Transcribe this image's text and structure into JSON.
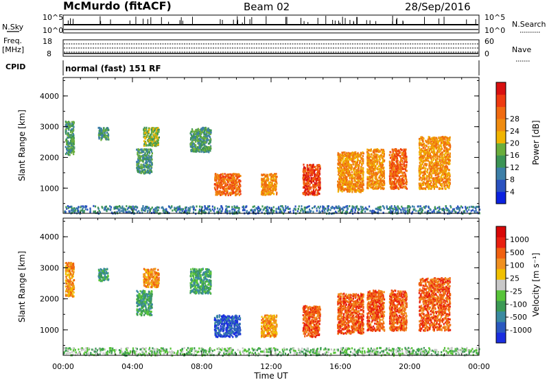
{
  "header": {
    "station": "McMurdo (fitACF)",
    "beam": "Beam 02",
    "date": "28/Sep/2016"
  },
  "params": {
    "nsky_label": "N.Sky",
    "nsky_ticks": [
      "10^5",
      "10^0"
    ],
    "nsearch_label": "N.Search",
    "nsearch_ticks": [
      "10^5",
      "10^0"
    ],
    "freq_label_1": "Freq.",
    "freq_label_2": "[MHz]",
    "freq_ticks": [
      "18",
      "8"
    ],
    "nave_label": "Nave",
    "nave_ticks": [
      "60",
      "0"
    ],
    "cpid_label": "CPID",
    "cpid_value": "normal (fast) 151 RF"
  },
  "chart_data": [
    {
      "type": "heatmap",
      "title": "",
      "ylabel": "Slant Range [km]",
      "xlabel": "",
      "x_ticks": [
        "00:00",
        "04:00",
        "08:00",
        "12:00",
        "16:00",
        "20:00",
        "00:00"
      ],
      "x_range_hours": [
        0,
        24
      ],
      "y_ticks": [
        1000,
        2000,
        3000,
        4000
      ],
      "ylim": [
        180,
        4600
      ],
      "colorbar": {
        "label": "Power [dB]",
        "ticks": [
          "4",
          "8",
          "12",
          "16",
          "20",
          "24",
          "28"
        ],
        "colors": [
          "#0b22e0",
          "#2a52c0",
          "#3d7fa8",
          "#3c9455",
          "#6aae3c",
          "#f0b400",
          "#f08c10",
          "#f06a10",
          "#ee3a10",
          "#d81010"
        ]
      },
      "echo_regions": [
        {
          "hour_start": 0.1,
          "hour_end": 0.6,
          "range_min": 2100,
          "range_max": 3200,
          "level": 3
        },
        {
          "hour_start": 2.0,
          "hour_end": 2.6,
          "range_min": 2600,
          "range_max": 3000,
          "level": 3
        },
        {
          "hour_start": 4.2,
          "hour_end": 5.1,
          "range_min": 1500,
          "range_max": 2300,
          "level": 3
        },
        {
          "hour_start": 4.6,
          "hour_end": 5.5,
          "range_min": 2400,
          "range_max": 3000,
          "level": 4
        },
        {
          "hour_start": 7.3,
          "hour_end": 8.5,
          "range_min": 2200,
          "range_max": 3000,
          "level": 3
        },
        {
          "hour_start": 8.7,
          "hour_end": 10.2,
          "range_min": 800,
          "range_max": 1500,
          "level": 7
        },
        {
          "hour_start": 11.4,
          "hour_end": 12.3,
          "range_min": 800,
          "range_max": 1500,
          "level": 6
        },
        {
          "hour_start": 13.8,
          "hour_end": 14.8,
          "range_min": 800,
          "range_max": 1800,
          "level": 8
        },
        {
          "hour_start": 15.8,
          "hour_end": 17.3,
          "range_min": 900,
          "range_max": 2200,
          "level": 6
        },
        {
          "hour_start": 17.5,
          "hour_end": 18.5,
          "range_min": 1000,
          "range_max": 2300,
          "level": 6
        },
        {
          "hour_start": 18.8,
          "hour_end": 19.8,
          "range_min": 1000,
          "range_max": 2300,
          "level": 7
        },
        {
          "hour_start": 20.5,
          "hour_end": 22.3,
          "range_min": 1000,
          "range_max": 2700,
          "level": 6
        },
        {
          "hour_start": 0.0,
          "hour_end": 24.0,
          "range_min": 200,
          "range_max": 450,
          "level": 2
        }
      ]
    },
    {
      "type": "heatmap",
      "title": "",
      "ylabel": "Slant Range [km]",
      "xlabel": "Time UT",
      "x_ticks": [
        "00:00",
        "04:00",
        "08:00",
        "12:00",
        "16:00",
        "20:00",
        "00:00"
      ],
      "x_range_hours": [
        0,
        24
      ],
      "y_ticks": [
        1000,
        2000,
        3000,
        4000
      ],
      "ylim": [
        180,
        4600
      ],
      "colorbar": {
        "label": "Velocity [m s⁻¹]",
        "ticks": [
          "1000",
          "500",
          "100",
          "25",
          "-25",
          "-100",
          "-500",
          "-1000"
        ],
        "colors": [
          "#1b2ee0",
          "#2a58c0",
          "#3a8aa0",
          "#3c9a55",
          "#58c43a",
          "#c8c8c8",
          "#f0c000",
          "#f09020",
          "#f06010",
          "#e82010",
          "#d80808"
        ]
      },
      "echo_regions": [
        {
          "hour_start": 0.1,
          "hour_end": 0.6,
          "range_min": 2100,
          "range_max": 3200,
          "level": 7
        },
        {
          "hour_start": 2.0,
          "hour_end": 2.6,
          "range_min": 2600,
          "range_max": 3000,
          "level": 3
        },
        {
          "hour_start": 4.2,
          "hour_end": 5.1,
          "range_min": 1500,
          "range_max": 2300,
          "level": 3
        },
        {
          "hour_start": 4.6,
          "hour_end": 5.5,
          "range_min": 2400,
          "range_max": 3000,
          "level": 7
        },
        {
          "hour_start": 7.3,
          "hour_end": 8.5,
          "range_min": 2200,
          "range_max": 3000,
          "level": 3
        },
        {
          "hour_start": 8.7,
          "hour_end": 10.2,
          "range_min": 800,
          "range_max": 1500,
          "level": 1
        },
        {
          "hour_start": 11.4,
          "hour_end": 12.3,
          "range_min": 800,
          "range_max": 1500,
          "level": 7
        },
        {
          "hour_start": 13.8,
          "hour_end": 14.8,
          "range_min": 800,
          "range_max": 1800,
          "level": 8
        },
        {
          "hour_start": 15.8,
          "hour_end": 17.3,
          "range_min": 900,
          "range_max": 2200,
          "level": 8
        },
        {
          "hour_start": 17.5,
          "hour_end": 18.5,
          "range_min": 1000,
          "range_max": 2300,
          "level": 8
        },
        {
          "hour_start": 18.8,
          "hour_end": 19.8,
          "range_min": 1000,
          "range_max": 2300,
          "level": 8
        },
        {
          "hour_start": 20.5,
          "hour_end": 22.3,
          "range_min": 1000,
          "range_max": 2700,
          "level": 8
        },
        {
          "hour_start": 0.0,
          "hour_end": 24.0,
          "range_min": 200,
          "range_max": 450,
          "level": 4
        }
      ]
    }
  ]
}
